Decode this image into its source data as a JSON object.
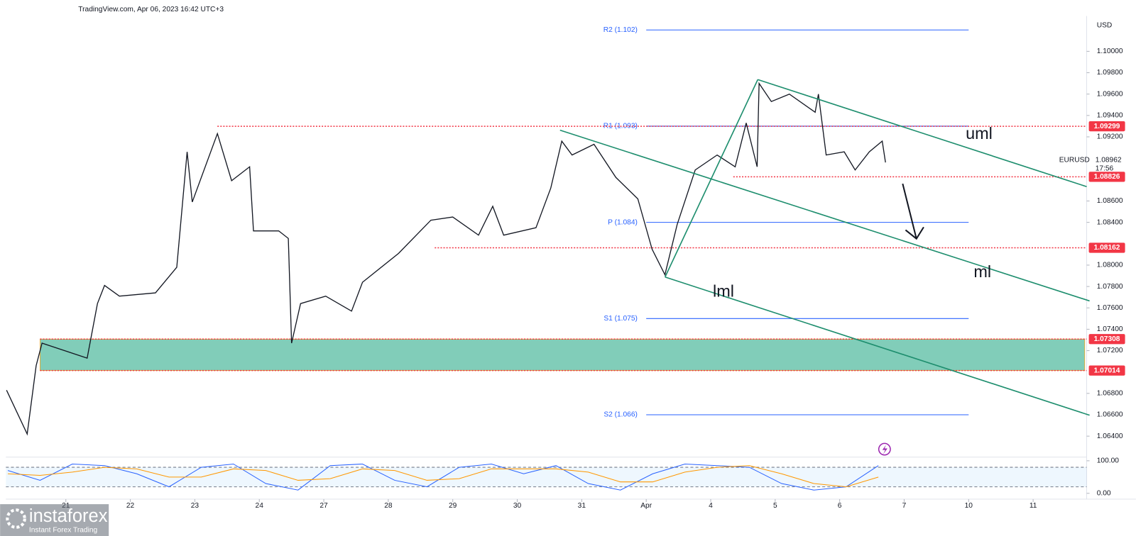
{
  "header": {
    "title": "TradingView.com, Apr 06, 2023 16:42 UTC+3"
  },
  "brand": {
    "name": "instaforex",
    "tagline": "Instant Forex Trading"
  },
  "chart_data": [
    {
      "type": "line",
      "currency": "USD",
      "x": [
        -0.92,
        -0.6,
        -0.46,
        -0.37,
        0.33,
        0.49,
        0.6,
        0.83,
        1.39,
        1.72,
        1.88,
        1.96,
        2.35,
        2.57,
        2.85,
        2.91,
        3.3,
        3.45,
        3.5,
        3.64,
        4.03,
        4.43,
        4.6,
        5.16,
        5.66,
        6.0,
        6.4,
        6.62,
        6.79,
        7.29,
        7.52,
        7.69,
        7.85,
        8.19,
        8.53,
        8.87,
        9.09,
        9.29,
        9.48,
        9.76,
        10.1,
        10.38,
        10.55,
        10.72,
        10.75,
        10.94,
        11.22,
        11.62,
        11.67,
        11.79,
        12.07,
        12.24,
        12.46,
        12.66,
        12.71
      ],
      "series": [
        {
          "name": "EURUSD",
          "color": "#131722",
          "values": [
            1.0683,
            1.0642,
            1.0706,
            1.0727,
            1.0713,
            1.0764,
            1.0781,
            1.0771,
            1.0774,
            1.0798,
            1.0906,
            1.0859,
            1.0923,
            1.0879,
            1.0892,
            1.0832,
            1.0832,
            1.0825,
            1.0727,
            1.0764,
            1.0771,
            1.0757,
            1.0784,
            1.0811,
            1.0842,
            1.0845,
            1.0828,
            1.0855,
            1.0828,
            1.0835,
            1.0872,
            1.0916,
            1.0903,
            1.0913,
            1.0882,
            1.0862,
            1.0815,
            1.0791,
            1.0838,
            1.0889,
            1.0903,
            1.0892,
            1.0933,
            1.0892,
            1.097,
            1.0953,
            1.096,
            1.0943,
            1.096,
            1.0903,
            1.0906,
            1.0889,
            1.0906,
            1.0916,
            1.0896
          ]
        }
      ],
      "last_price": 1.08962,
      "countdown": "17:56",
      "xlim": [
        -0.93,
        15.83
      ],
      "xticks": [
        {
          "value": 0,
          "label": "21"
        },
        {
          "value": 1,
          "label": "22"
        },
        {
          "value": 2,
          "label": "23"
        },
        {
          "value": 3,
          "label": "24"
        },
        {
          "value": 4,
          "label": "27"
        },
        {
          "value": 5,
          "label": "28"
        },
        {
          "value": 6,
          "label": "29"
        },
        {
          "value": 7,
          "label": "30"
        },
        {
          "value": 8,
          "label": "31"
        },
        {
          "value": 9,
          "label": "Apr"
        },
        {
          "value": 10,
          "label": "4"
        },
        {
          "value": 11,
          "label": "5"
        },
        {
          "value": 12,
          "label": "6"
        },
        {
          "value": 13,
          "label": "7"
        },
        {
          "value": 14,
          "label": "10"
        },
        {
          "value": 15,
          "label": "11"
        }
      ],
      "ylim": [
        1.06217,
        1.10311
      ],
      "yticks": [
        {
          "value": 1.064,
          "label": "1.06400"
        },
        {
          "value": 1.066,
          "label": "1.06600"
        },
        {
          "value": 1.068,
          "label": "1.06800"
        },
        {
          "value": 1.072,
          "label": "1.07200"
        },
        {
          "value": 1.074,
          "label": "1.07400"
        },
        {
          "value": 1.076,
          "label": "1.07600"
        },
        {
          "value": 1.078,
          "label": "1.07800"
        },
        {
          "value": 1.08,
          "label": "1.08000"
        },
        {
          "value": 1.084,
          "label": "1.08400"
        },
        {
          "value": 1.086,
          "label": "1.08600"
        },
        {
          "value": 1.092,
          "label": "1.09200"
        },
        {
          "value": 1.094,
          "label": "1.09400"
        },
        {
          "value": 1.096,
          "label": "1.09600"
        },
        {
          "value": 1.098,
          "label": "1.09800"
        },
        {
          "value": 1.1,
          "label": "1.10000"
        }
      ],
      "pivots": [
        {
          "label": "R2 (1.102)",
          "value": 1.102,
          "x_from": 9.0,
          "x_to": 14.0
        },
        {
          "label": "R1 (1.093)",
          "value": 1.093,
          "x_from": 9.0,
          "x_to": 14.0
        },
        {
          "label": "P (1.084)",
          "value": 1.084,
          "x_from": 9.0,
          "x_to": 14.0
        },
        {
          "label": "S1 (1.075)",
          "value": 1.075,
          "x_from": 9.0,
          "x_to": 14.0
        },
        {
          "label": "S2 (1.066)",
          "value": 1.066,
          "x_from": 9.0,
          "x_to": 14.0
        }
      ],
      "pivot_color": "#2962ff",
      "levels": [
        {
          "value": 1.09299,
          "x_from": 2.35
        },
        {
          "value": 1.08826,
          "x_from": 10.35
        },
        {
          "value": 1.08162,
          "x_from": 5.72
        }
      ],
      "level_color": "#f23645",
      "zone": {
        "low": 1.07014,
        "high": 1.07308,
        "x_from": -0.4,
        "x_to": 15.8,
        "color": "#81cdb9"
      },
      "annotations": [
        "uml",
        "ml",
        "lml"
      ]
    },
    {
      "type": "line",
      "x": [
        -0.9,
        -0.4,
        0.1,
        0.6,
        1.1,
        1.6,
        2.1,
        2.6,
        3.1,
        3.6,
        4.1,
        4.6,
        5.1,
        5.6,
        6.1,
        6.6,
        7.1,
        7.6,
        8.1,
        8.6,
        9.1,
        9.6,
        10.1,
        10.6,
        11.1,
        11.6,
        12.1,
        12.6
      ],
      "series": [
        {
          "color": "#2962ff",
          "values": [
            70,
            40,
            90,
            85,
            60,
            20,
            80,
            90,
            30,
            10,
            85,
            90,
            40,
            20,
            80,
            90,
            60,
            85,
            30,
            10,
            60,
            90,
            85,
            80,
            30,
            10,
            20,
            85
          ]
        },
        {
          "color": "#ff9800",
          "values": [
            60,
            55,
            65,
            80,
            75,
            50,
            50,
            75,
            70,
            40,
            45,
            75,
            70,
            40,
            45,
            75,
            75,
            75,
            65,
            35,
            35,
            65,
            80,
            85,
            60,
            30,
            20,
            50
          ]
        }
      ],
      "xlim": [
        -0.93,
        15.83
      ],
      "ylim": [
        -17.8,
        111.1
      ],
      "yticks": [
        {
          "value": 100,
          "label": "100.00"
        },
        {
          "value": 0,
          "label": "0.00"
        }
      ],
      "bands": [
        20,
        80
      ]
    }
  ]
}
